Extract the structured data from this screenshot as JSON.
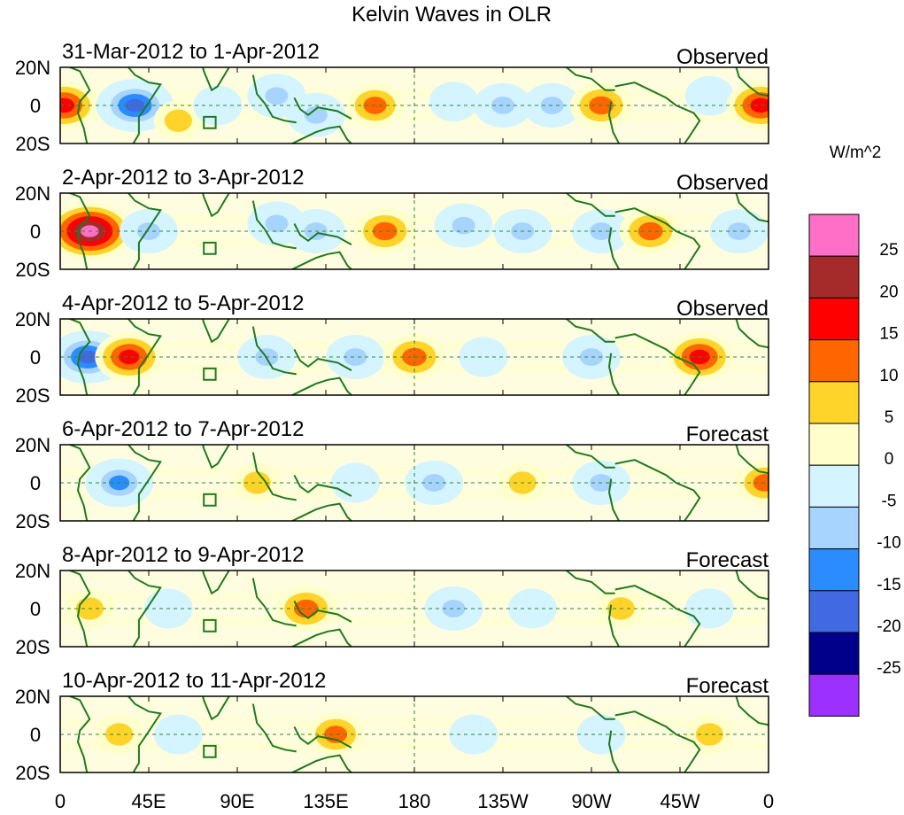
{
  "chart_data": {
    "type": "heatmap",
    "title": "Kelvin Waves in OLR",
    "units_label": "W/m^2",
    "x_ticks": [
      "0",
      "45E",
      "90E",
      "135E",
      "180",
      "135W",
      "90W",
      "45W",
      "0"
    ],
    "x_range_deg": [
      0,
      360
    ],
    "y_ticks": [
      "20N",
      "0",
      "20S"
    ],
    "y_range_deg": [
      -20,
      20
    ],
    "colorbar": {
      "labels": [
        "25",
        "20",
        "15",
        "10",
        "5",
        "0",
        "-5",
        "-10",
        "-15",
        "-20",
        "-25"
      ],
      "colors": [
        "#ff6ec7",
        "#a52a2a",
        "#ff0000",
        "#ff6600",
        "#ffd42a",
        "#ffffcc",
        "#d4f4ff",
        "#a6d4ff",
        "#2a8cff",
        "#4169e1",
        "#00008b",
        "#9b30ff"
      ]
    },
    "panels": [
      {
        "period": "31-Mar-2012 to 1-Apr-2012",
        "status": "Observed",
        "anomalies": [
          {
            "lon": 2,
            "lat": 0,
            "value": 15
          },
          {
            "lon": 38,
            "lat": 0,
            "value": -20
          },
          {
            "lon": 60,
            "lat": -8,
            "value": 5
          },
          {
            "lon": 80,
            "lat": 0,
            "value": -5
          },
          {
            "lon": 110,
            "lat": 5,
            "value": -10
          },
          {
            "lon": 130,
            "lat": -5,
            "value": -10
          },
          {
            "lon": 160,
            "lat": 0,
            "value": 10
          },
          {
            "lon": 200,
            "lat": 2,
            "value": -5
          },
          {
            "lon": 225,
            "lat": 0,
            "value": -10
          },
          {
            "lon": 250,
            "lat": 0,
            "value": -10
          },
          {
            "lon": 275,
            "lat": 0,
            "value": 12
          },
          {
            "lon": 330,
            "lat": 5,
            "value": -5
          },
          {
            "lon": 356,
            "lat": 0,
            "value": 15
          }
        ]
      },
      {
        "period": "2-Apr-2012 to 3-Apr-2012",
        "status": "Observed",
        "anomalies": [
          {
            "lon": 15,
            "lat": 0,
            "value": 25
          },
          {
            "lon": 45,
            "lat": 0,
            "value": -10
          },
          {
            "lon": 110,
            "lat": 4,
            "value": -10
          },
          {
            "lon": 130,
            "lat": 0,
            "value": -10
          },
          {
            "lon": 165,
            "lat": 0,
            "value": 12
          },
          {
            "lon": 205,
            "lat": 3,
            "value": -10
          },
          {
            "lon": 235,
            "lat": 0,
            "value": -10
          },
          {
            "lon": 275,
            "lat": 0,
            "value": -10
          },
          {
            "lon": 300,
            "lat": 0,
            "value": 12
          },
          {
            "lon": 345,
            "lat": 0,
            "value": -10
          }
        ]
      },
      {
        "period": "4-Apr-2012 to 5-Apr-2012",
        "status": "Observed",
        "anomalies": [
          {
            "lon": 14,
            "lat": 0,
            "value": -20
          },
          {
            "lon": 35,
            "lat": 0,
            "value": 15
          },
          {
            "lon": 105,
            "lat": 0,
            "value": -10
          },
          {
            "lon": 150,
            "lat": 0,
            "value": -10
          },
          {
            "lon": 180,
            "lat": 0,
            "value": 12
          },
          {
            "lon": 215,
            "lat": 0,
            "value": -5
          },
          {
            "lon": 270,
            "lat": 0,
            "value": -10
          },
          {
            "lon": 325,
            "lat": 0,
            "value": 15
          }
        ]
      },
      {
        "period": "6-Apr-2012 to 7-Apr-2012",
        "status": "Forecast",
        "anomalies": [
          {
            "lon": 30,
            "lat": 0,
            "value": -15
          },
          {
            "lon": 100,
            "lat": 0,
            "value": 5
          },
          {
            "lon": 150,
            "lat": 0,
            "value": -5
          },
          {
            "lon": 190,
            "lat": 0,
            "value": -10
          },
          {
            "lon": 235,
            "lat": 0,
            "value": 5
          },
          {
            "lon": 275,
            "lat": 0,
            "value": -10
          },
          {
            "lon": 358,
            "lat": 0,
            "value": 10
          }
        ]
      },
      {
        "period": "8-Apr-2012 to 9-Apr-2012",
        "status": "Forecast",
        "anomalies": [
          {
            "lon": 15,
            "lat": 0,
            "value": 5
          },
          {
            "lon": 55,
            "lat": 0,
            "value": -5
          },
          {
            "lon": 125,
            "lat": 0,
            "value": 12
          },
          {
            "lon": 200,
            "lat": 0,
            "value": -10
          },
          {
            "lon": 240,
            "lat": 0,
            "value": -5
          },
          {
            "lon": 285,
            "lat": 0,
            "value": 5
          },
          {
            "lon": 330,
            "lat": 0,
            "value": -5
          }
        ]
      },
      {
        "period": "10-Apr-2012 to 11-Apr-2012",
        "status": "Forecast",
        "anomalies": [
          {
            "lon": 30,
            "lat": 0,
            "value": 5
          },
          {
            "lon": 60,
            "lat": 0,
            "value": -5
          },
          {
            "lon": 140,
            "lat": 0,
            "value": 10
          },
          {
            "lon": 210,
            "lat": 0,
            "value": -5
          },
          {
            "lon": 275,
            "lat": 0,
            "value": -5
          },
          {
            "lon": 330,
            "lat": 0,
            "value": 5
          }
        ]
      }
    ]
  }
}
